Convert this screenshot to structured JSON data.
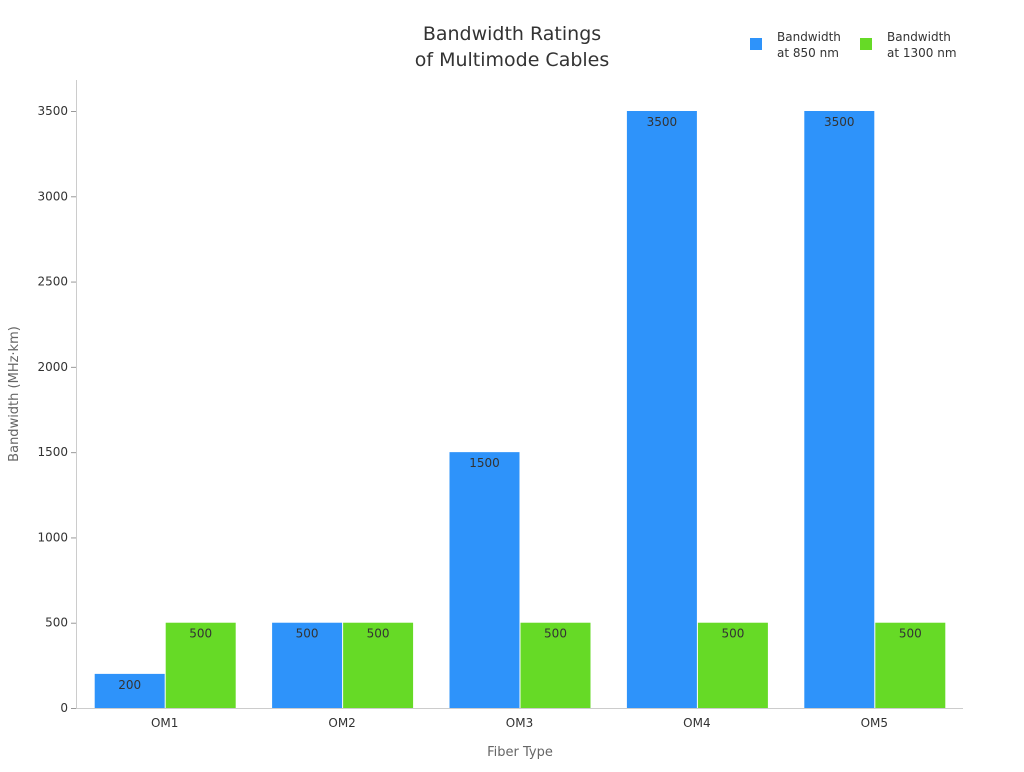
{
  "chart_data": {
    "type": "bar",
    "title": [
      "Bandwidth Ratings",
      "of Multimode Cables"
    ],
    "xlabel": "Fiber Type",
    "ylabel": "Bandwidth (MHz·km)",
    "categories": [
      "OM1",
      "OM2",
      "OM3",
      "OM4",
      "OM5"
    ],
    "series": [
      {
        "name": [
          "Bandwidth",
          "at 850 nm"
        ],
        "color": "#2E93FA",
        "values": [
          200,
          500,
          1500,
          3500,
          3500
        ]
      },
      {
        "name": [
          "Bandwidth",
          "at 1300 nm"
        ],
        "color": "#66DA26",
        "values": [
          500,
          500,
          500,
          500,
          500
        ]
      }
    ],
    "ylim": [
      0,
      3500
    ],
    "yticks": [
      0,
      500,
      1000,
      1500,
      2000,
      2500,
      3000,
      3500
    ],
    "grid": false,
    "legend": "top-right",
    "data_labels": true
  }
}
